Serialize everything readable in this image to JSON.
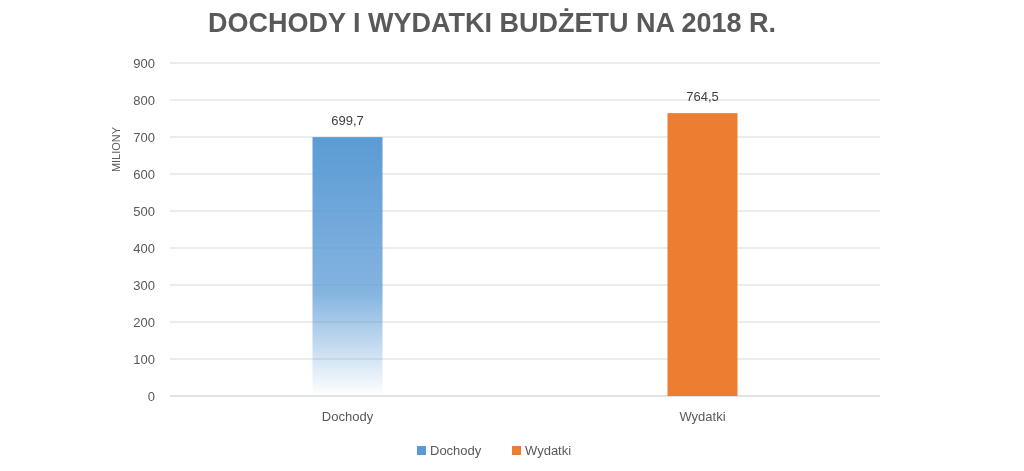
{
  "chart_data": {
    "type": "bar",
    "title": "DOCHODY I WYDATKI BUDŻETU NA 2018 R.",
    "ylabel": "MILIONY",
    "categories": [
      "Dochody",
      "Wydatki"
    ],
    "series": [
      {
        "name": "Dochody",
        "color": "#5b9bd5",
        "values": [
          699.7,
          null
        ],
        "value_labels": [
          "699,7",
          null
        ]
      },
      {
        "name": "Wydatki",
        "color": "#ed7d31",
        "values": [
          null,
          764.5
        ],
        "value_labels": [
          null,
          "764,5"
        ]
      }
    ],
    "ylim": [
      0,
      900
    ],
    "yticks": [
      0,
      100,
      200,
      300,
      400,
      500,
      600,
      700,
      800,
      900
    ],
    "grid": "y",
    "legend": "bottom"
  }
}
